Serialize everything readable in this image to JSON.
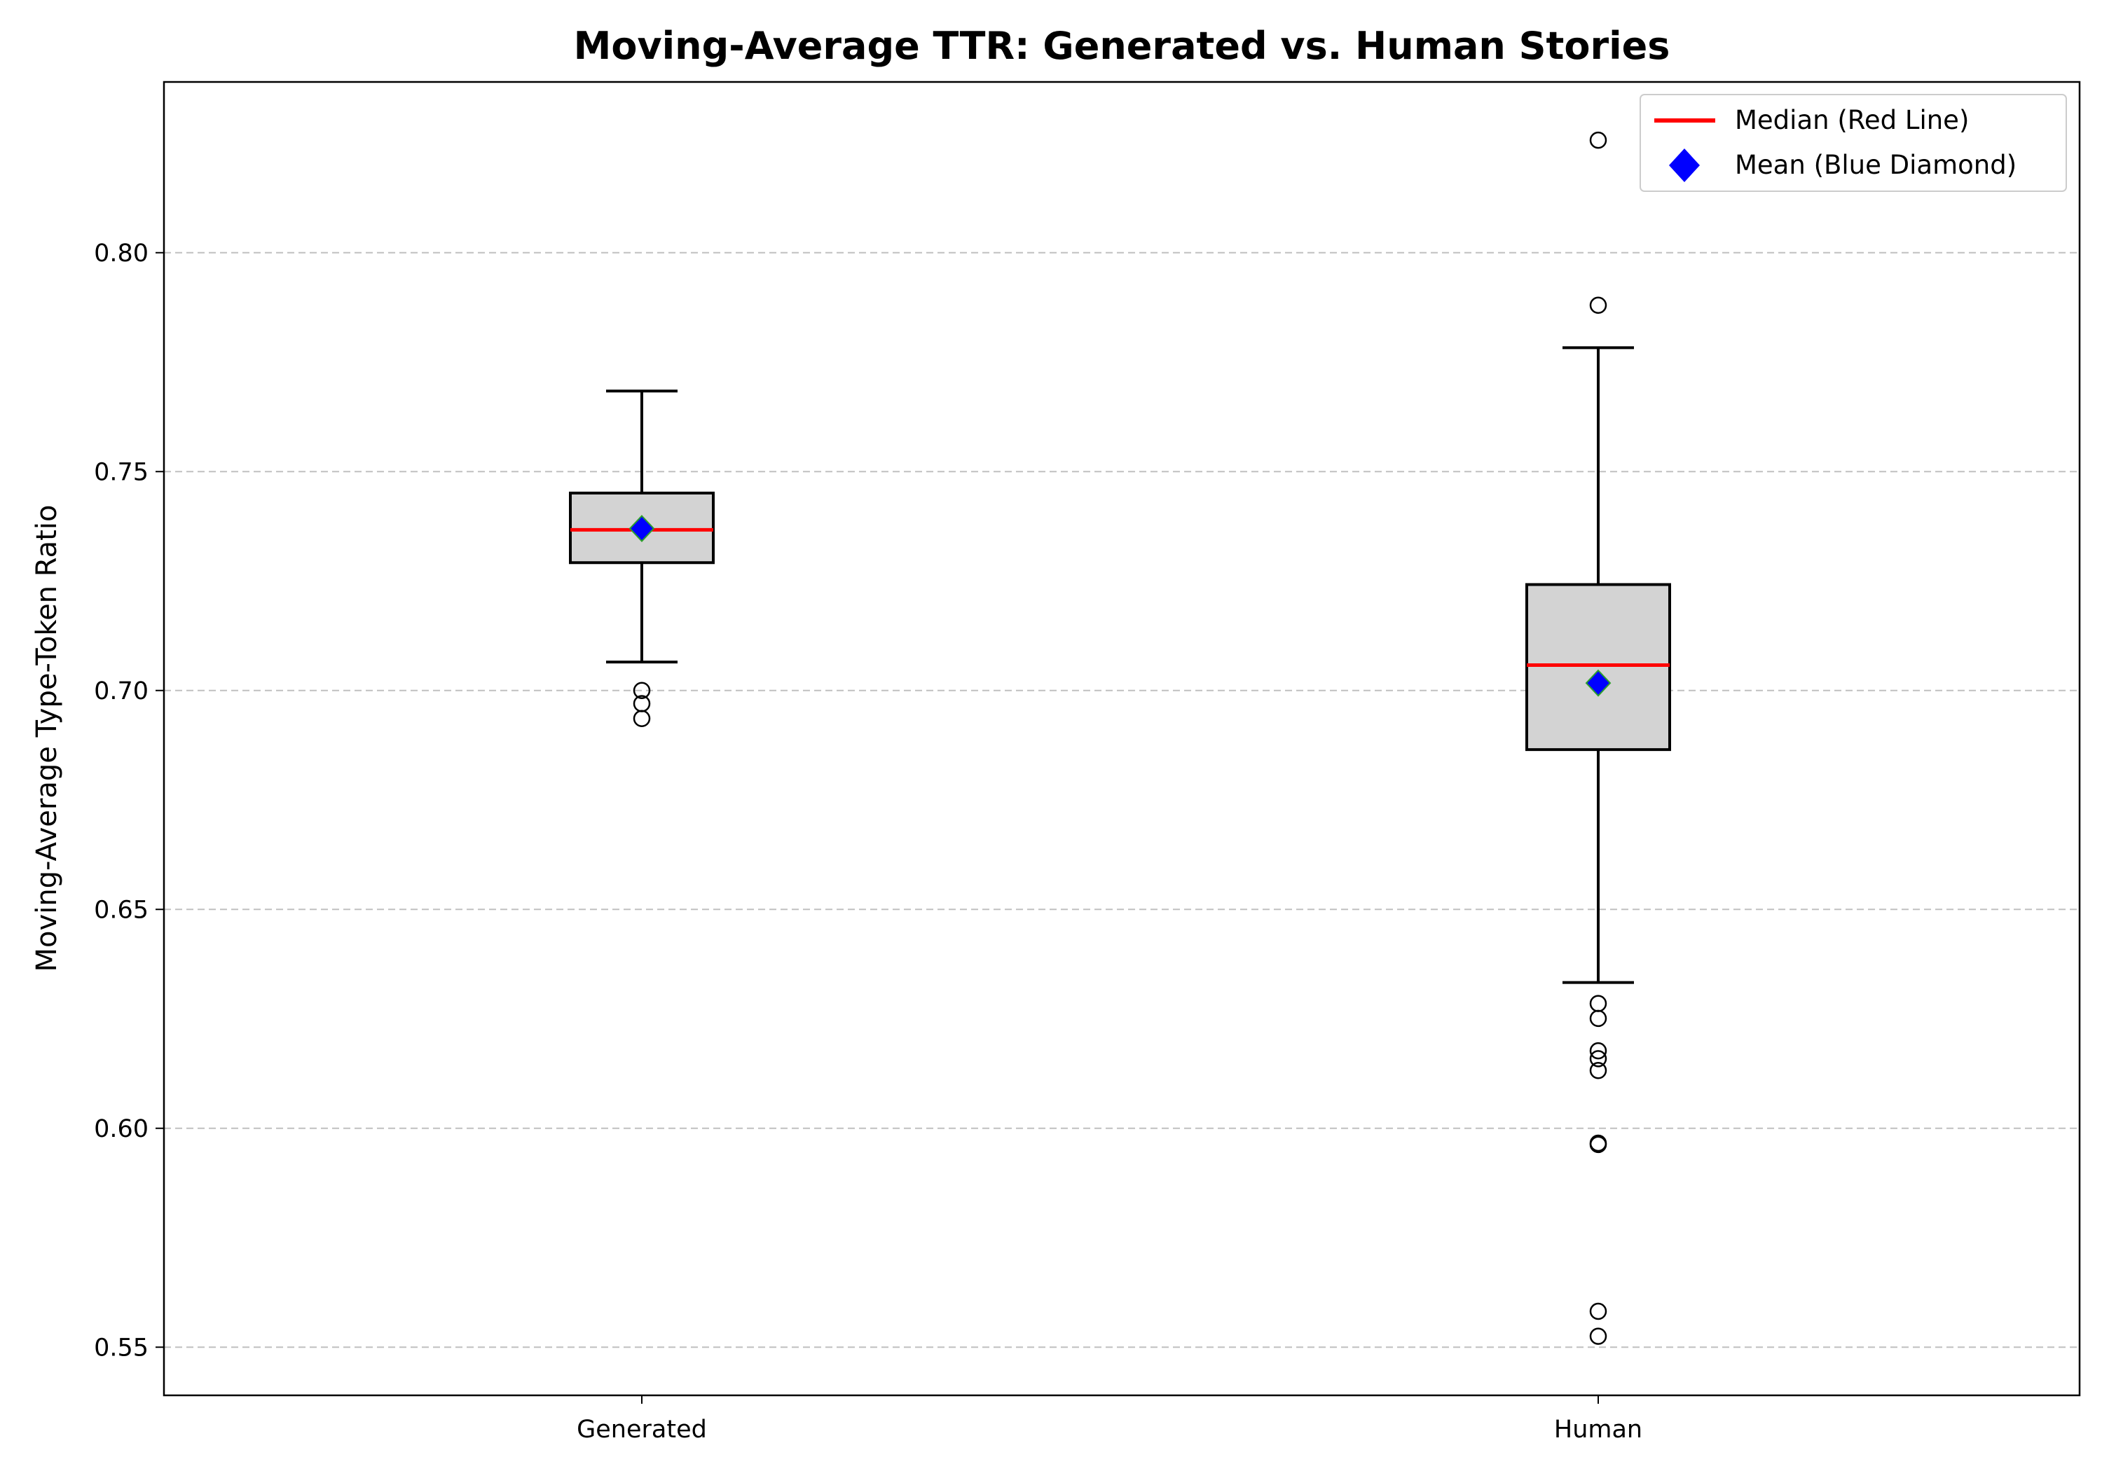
{
  "chart_data": {
    "type": "box",
    "title": "Moving-Average TTR: Generated vs. Human Stories",
    "xlabel": "",
    "ylabel": "Moving-Average Type-Token Ratio",
    "ylim": [
      0.539,
      0.839
    ],
    "yticks": [
      0.55,
      0.6,
      0.65,
      0.7,
      0.75,
      0.8
    ],
    "ytick_labels": [
      "0.55",
      "0.60",
      "0.65",
      "0.70",
      "0.75",
      "0.80"
    ],
    "grid": "y-dashed",
    "legend_position": "top-right",
    "legend": [
      {
        "label": "Median (Red Line)",
        "marker": "line",
        "color": "#ff0000"
      },
      {
        "label": "Mean (Blue Diamond)",
        "marker": "diamond",
        "color": "#0000ff"
      }
    ],
    "categories": [
      "Generated",
      "Human"
    ],
    "boxes": [
      {
        "name": "Generated",
        "whisker_low": 0.7065,
        "q1": 0.7292,
        "median": 0.7367,
        "q3": 0.7451,
        "whisker_high": 0.7684,
        "mean": 0.737,
        "outliers": [
          0.7,
          0.697,
          0.6936
        ]
      },
      {
        "name": "Human",
        "whisker_low": 0.6333,
        "q1": 0.6865,
        "median": 0.7058,
        "q3": 0.7242,
        "whisker_high": 0.7783,
        "mean": 0.7017,
        "outliers": [
          0.8257,
          0.788,
          0.6285,
          0.6251,
          0.6177,
          0.6159,
          0.6132,
          0.5966,
          0.5963,
          0.5582,
          0.5525
        ]
      }
    ],
    "colors": {
      "box_fill": "#d3d3d3",
      "box_edge": "#000000",
      "median": "#ff0000",
      "mean_fill": "#0000ff",
      "mean_edge": "#2ca02c",
      "grid": "#c0c0c0"
    }
  }
}
